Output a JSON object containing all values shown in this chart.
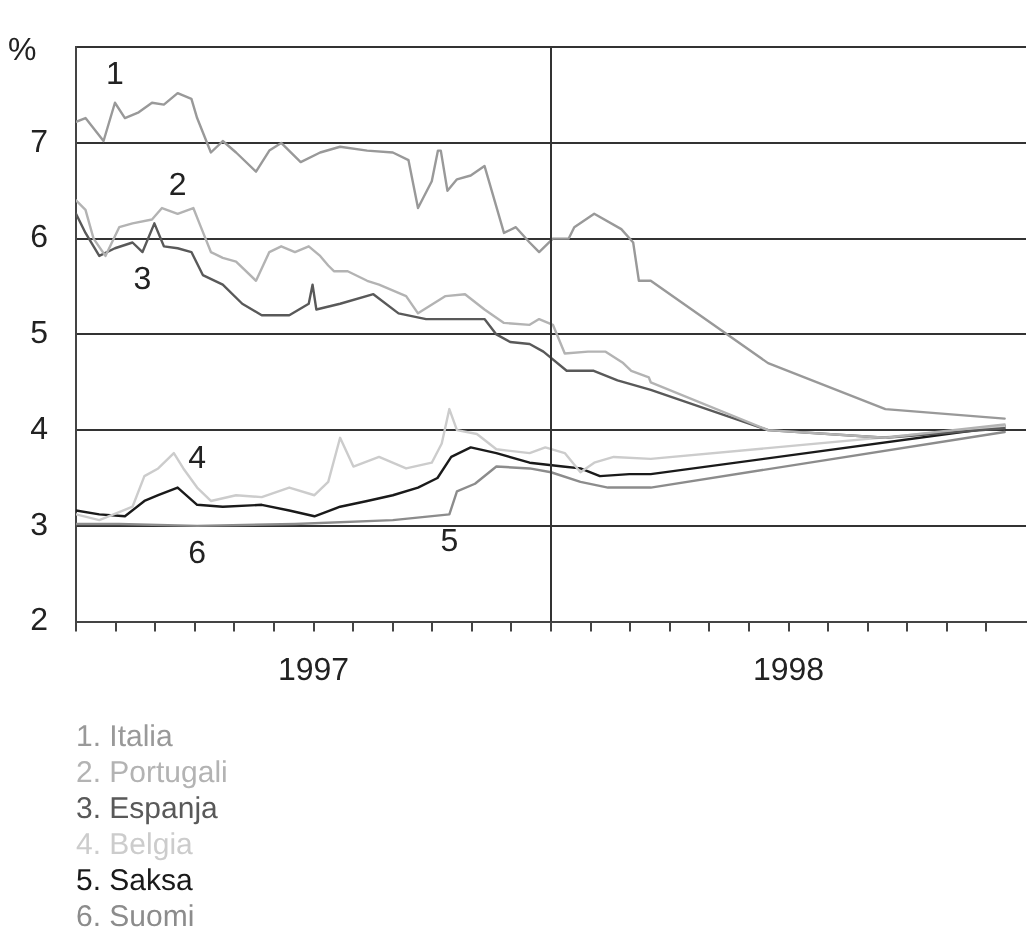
{
  "chart_data": {
    "type": "line",
    "ylabel": "%",
    "xlim": [
      1997,
      1999
    ],
    "xticks": [
      {
        "value": 1997,
        "label": null
      },
      {
        "value": 1997.0833,
        "label": null
      },
      {
        "value": 1997.1667,
        "label": null
      },
      {
        "value": 1997.25,
        "label": null
      },
      {
        "value": 1997.3333,
        "label": null
      },
      {
        "value": 1997.4167,
        "label": null
      },
      {
        "value": 1997.5,
        "label": "1997"
      },
      {
        "value": 1997.5833,
        "label": null
      },
      {
        "value": 1997.6667,
        "label": null
      },
      {
        "value": 1997.75,
        "label": null
      },
      {
        "value": 1997.8333,
        "label": null
      },
      {
        "value": 1997.9167,
        "label": null
      },
      {
        "value": 1998,
        "label": null
      },
      {
        "value": 1998.0833,
        "label": null
      },
      {
        "value": 1998.1667,
        "label": null
      },
      {
        "value": 1998.25,
        "label": null
      },
      {
        "value": 1998.3333,
        "label": null
      },
      {
        "value": 1998.4167,
        "label": null
      },
      {
        "value": 1998.5,
        "label": "1998"
      },
      {
        "value": 1998.5833,
        "label": null
      },
      {
        "value": 1998.6667,
        "label": null
      },
      {
        "value": 1998.75,
        "label": null
      },
      {
        "value": 1998.8333,
        "label": null
      },
      {
        "value": 1998.9167,
        "label": null
      }
    ],
    "ylim": [
      2,
      8
    ],
    "yticks": [
      2,
      3,
      4,
      5,
      6,
      7,
      {
        "value": 8,
        "label": null
      }
    ],
    "grid": "y",
    "legend": "bottom",
    "marker": "none",
    "line_style": "solid",
    "ref_lines": [
      {
        "axis": "x",
        "value": 1998,
        "color": "#333333"
      }
    ],
    "annotations": [
      {
        "text": "1",
        "x": 1997.082,
        "y": 7.42
      },
      {
        "text": "2",
        "x": 1997.214,
        "y": 6.26
      },
      {
        "text": "3",
        "x": 1997.14,
        "y": 5.86
      },
      {
        "text": "4",
        "x": 1997.255,
        "y": 3.4
      },
      {
        "text": "5",
        "x": 1997.786,
        "y": 3.12
      },
      {
        "text": "6",
        "x": 1997.255,
        "y": 3.0
      }
    ],
    "series": [
      {
        "name": "1. Italia",
        "color": "#999999",
        "x": [
          1997,
          1997.02,
          1997.058,
          1997.082,
          1997.103,
          1997.132,
          1997.16,
          1997.185,
          1997.214,
          1997.243,
          1997.255,
          1997.284,
          1997.309,
          1997.337,
          1997.379,
          1997.407,
          1997.432,
          1997.473,
          1997.514,
          1997.556,
          1997.613,
          1997.667,
          1997.7,
          1997.72,
          1997.749,
          1997.762,
          1997.768,
          1997.782,
          1997.802,
          1997.831,
          1997.86,
          1997.901,
          1997.926,
          1997.955,
          1997.975,
          1998.004,
          1998.037,
          1998.049,
          1998.091,
          1998.148,
          1998.173,
          1998.185,
          1998.21,
          1998.457,
          1998.704,
          1998.955
        ],
        "values": [
          7.22,
          7.26,
          7.02,
          7.42,
          7.26,
          7.32,
          7.42,
          7.4,
          7.52,
          7.46,
          7.26,
          6.9,
          7.02,
          6.9,
          6.7,
          6.92,
          7.0,
          6.8,
          6.9,
          6.96,
          6.92,
          6.9,
          6.82,
          6.32,
          6.6,
          6.92,
          6.92,
          6.5,
          6.62,
          6.66,
          6.76,
          6.06,
          6.12,
          5.96,
          5.86,
          6.0,
          6.0,
          6.12,
          6.26,
          6.1,
          5.96,
          5.56,
          5.56,
          4.7,
          4.22,
          4.12
        ]
      },
      {
        "name": "2. Portugali",
        "color": "#b3b3b3",
        "x": [
          1997,
          1997.02,
          1997.037,
          1997.062,
          1997.091,
          1997.119,
          1997.16,
          1997.181,
          1997.214,
          1997.247,
          1997.263,
          1997.284,
          1997.309,
          1997.337,
          1997.379,
          1997.407,
          1997.432,
          1997.461,
          1997.49,
          1997.514,
          1997.531,
          1997.543,
          1997.572,
          1997.613,
          1997.638,
          1997.695,
          1997.72,
          1997.778,
          1997.819,
          1997.86,
          1997.901,
          1997.955,
          1997.975,
          1998.004,
          1998.029,
          1998.078,
          1998.115,
          1998.152,
          1998.169,
          1998.206,
          1998.21,
          1998.457,
          1998.704,
          1998.955
        ],
        "values": [
          6.4,
          6.3,
          6.0,
          5.82,
          6.12,
          6.16,
          6.2,
          6.32,
          6.26,
          6.32,
          6.12,
          5.86,
          5.8,
          5.76,
          5.56,
          5.86,
          5.92,
          5.86,
          5.92,
          5.82,
          5.72,
          5.66,
          5.66,
          5.56,
          5.52,
          5.4,
          5.22,
          5.4,
          5.42,
          5.26,
          5.12,
          5.1,
          5.16,
          5.1,
          4.8,
          4.82,
          4.82,
          4.7,
          4.62,
          4.55,
          4.5,
          4.0,
          3.92,
          4.06
        ]
      },
      {
        "name": "3. Espanja",
        "color": "#595959",
        "x": [
          1997,
          1997.02,
          1997.049,
          1997.082,
          1997.119,
          1997.14,
          1997.165,
          1997.185,
          1997.214,
          1997.243,
          1997.267,
          1997.309,
          1997.35,
          1997.391,
          1997.449,
          1997.49,
          1997.498,
          1997.506,
          1997.556,
          1997.626,
          1997.679,
          1997.737,
          1997.86,
          1997.885,
          1997.914,
          1997.955,
          1997.984,
          1998.033,
          1998.09,
          1998.14,
          1998.21,
          1998.457,
          1998.704,
          1998.955
        ],
        "values": [
          6.26,
          6.06,
          5.82,
          5.9,
          5.96,
          5.86,
          6.16,
          5.92,
          5.9,
          5.86,
          5.62,
          5.52,
          5.32,
          5.2,
          5.2,
          5.32,
          5.52,
          5.26,
          5.32,
          5.42,
          5.22,
          5.16,
          5.16,
          5.0,
          4.92,
          4.9,
          4.82,
          4.62,
          4.62,
          4.52,
          4.42,
          4.0,
          3.92,
          4.02
        ]
      },
      {
        "name": "4. Belgia",
        "color": "#cccccc",
        "x": [
          1997,
          1997.049,
          1997.119,
          1997.144,
          1997.173,
          1997.206,
          1997.226,
          1997.255,
          1997.284,
          1997.337,
          1997.391,
          1997.449,
          1997.502,
          1997.531,
          1997.556,
          1997.584,
          1997.638,
          1997.695,
          1997.749,
          1997.77,
          1997.786,
          1997.802,
          1997.844,
          1997.885,
          1997.955,
          1997.988,
          1998.029,
          1998.062,
          1998.091,
          1998.132,
          1998.21,
          1998.955
        ],
        "values": [
          3.12,
          3.06,
          3.2,
          3.52,
          3.6,
          3.76,
          3.6,
          3.4,
          3.26,
          3.32,
          3.3,
          3.4,
          3.32,
          3.46,
          3.92,
          3.62,
          3.72,
          3.6,
          3.66,
          3.86,
          4.22,
          4.0,
          3.96,
          3.8,
          3.76,
          3.82,
          3.76,
          3.56,
          3.66,
          3.72,
          3.7,
          4.04
        ]
      },
      {
        "name": "5. Saksa",
        "color": "#1a1a1a",
        "x": [
          1997,
          1997.049,
          1997.103,
          1997.144,
          1997.173,
          1997.214,
          1997.255,
          1997.309,
          1997.391,
          1997.449,
          1997.502,
          1997.556,
          1997.613,
          1997.667,
          1997.72,
          1997.761,
          1997.79,
          1997.831,
          1997.885,
          1997.955,
          1998.025,
          1998.062,
          1998.103,
          1998.165,
          1998.21,
          1998.955
        ],
        "values": [
          3.16,
          3.12,
          3.1,
          3.26,
          3.32,
          3.4,
          3.22,
          3.2,
          3.22,
          3.16,
          3.1,
          3.2,
          3.26,
          3.32,
          3.4,
          3.5,
          3.72,
          3.82,
          3.76,
          3.66,
          3.62,
          3.6,
          3.52,
          3.54,
          3.54,
          4.04
        ]
      },
      {
        "name": "6. Suomi",
        "color": "#8c8c8c",
        "x": [
          1997,
          1997.091,
          1997.255,
          1997.461,
          1997.667,
          1997.786,
          1997.802,
          1997.84,
          1997.885,
          1997.955,
          1998.0,
          1998.062,
          1998.12,
          1998.21,
          1998.955
        ],
        "values": [
          3.02,
          3.02,
          3.0,
          3.02,
          3.06,
          3.12,
          3.36,
          3.44,
          3.62,
          3.6,
          3.56,
          3.46,
          3.4,
          3.4,
          3.98
        ]
      }
    ]
  }
}
